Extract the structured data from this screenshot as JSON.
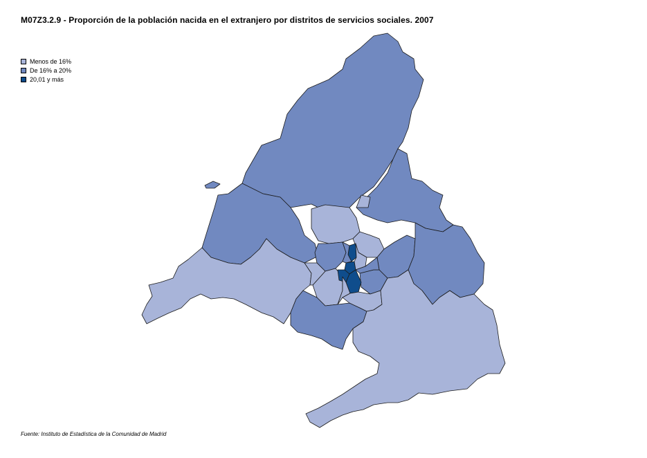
{
  "title": "M07Z3.2.9 - Proporción de la población nacida en el extranjero  por distritos de servicios sociales. 2007",
  "legend": [
    {
      "label": "Menos de 16%",
      "color": "#a8b4d9"
    },
    {
      "label": "De 16% a 20%",
      "color": "#7189c0"
    },
    {
      "label": "20,01 y más",
      "color": "#0f4d8c"
    }
  ],
  "source": "Fuente: Instituto de Estadística de la Comunidad de Madrid"
}
